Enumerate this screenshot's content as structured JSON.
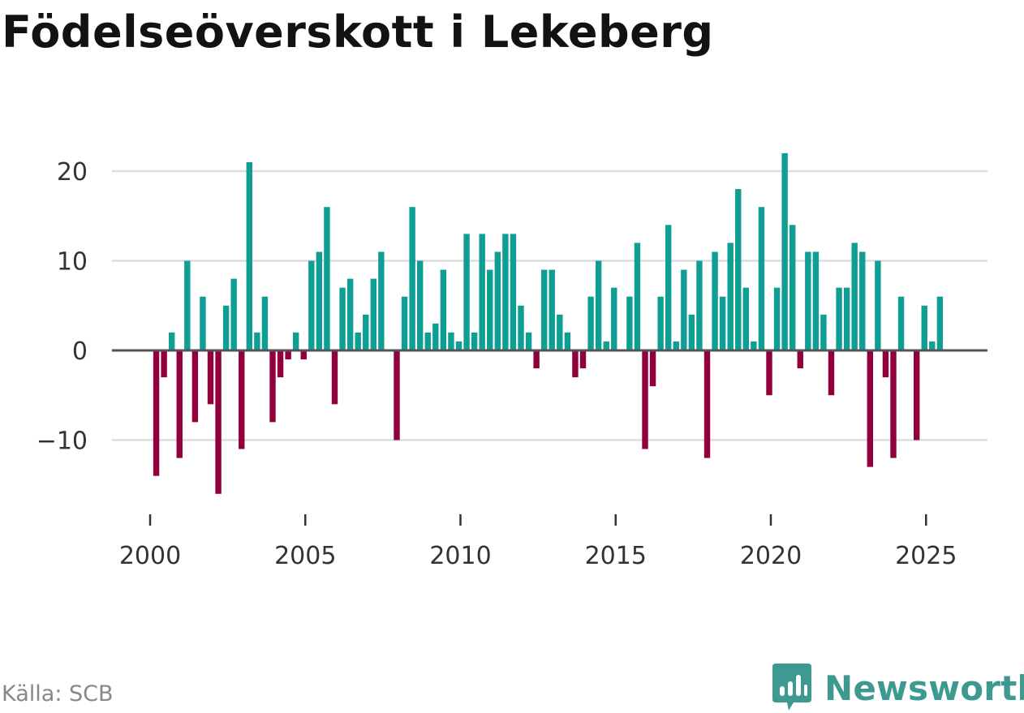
{
  "title": "Födelseöverskott i Lekeberg",
  "source": "Källa: SCB",
  "brand": "Newsworthy",
  "colors": {
    "positive": "#0e9e93",
    "negative": "#91003c",
    "grid": "#dddddd",
    "zero": "#555555",
    "brand": "#3e9a91"
  },
  "chart_data": {
    "type": "bar",
    "title": "Födelseöverskott i Lekeberg",
    "xlabel": "",
    "ylabel": "",
    "x_ticks": [
      "2000",
      "2005",
      "2010",
      "2015",
      "2020",
      "2025"
    ],
    "y_ticks": [
      "20",
      "10",
      "0",
      "−10"
    ],
    "ylim": [
      -18,
      24
    ],
    "x_start": 2000.25,
    "x_step": 0.25,
    "frequency": "quarterly",
    "values": [
      -14,
      -3,
      2,
      -12,
      10,
      -8,
      6,
      -6,
      -16,
      5,
      8,
      -11,
      21,
      2,
      6,
      -8,
      -3,
      -1,
      2,
      -1,
      10,
      11,
      16,
      -6,
      7,
      8,
      2,
      4,
      8,
      11,
      0,
      -10,
      6,
      16,
      10,
      2,
      3,
      9,
      2,
      1,
      13,
      2,
      13,
      9,
      11,
      13,
      13,
      5,
      2,
      -2,
      9,
      9,
      4,
      2,
      -3,
      -2,
      6,
      10,
      1,
      7,
      0,
      6,
      12,
      -11,
      -4,
      6,
      14,
      1,
      9,
      4,
      10,
      -12,
      11,
      6,
      12,
      18,
      7,
      1,
      16,
      -5,
      7,
      22,
      14,
      -2,
      11,
      11,
      4,
      -5,
      7,
      7,
      12,
      11,
      -13,
      10,
      -3,
      -12,
      6,
      0,
      -10,
      5,
      1,
      6
    ]
  }
}
